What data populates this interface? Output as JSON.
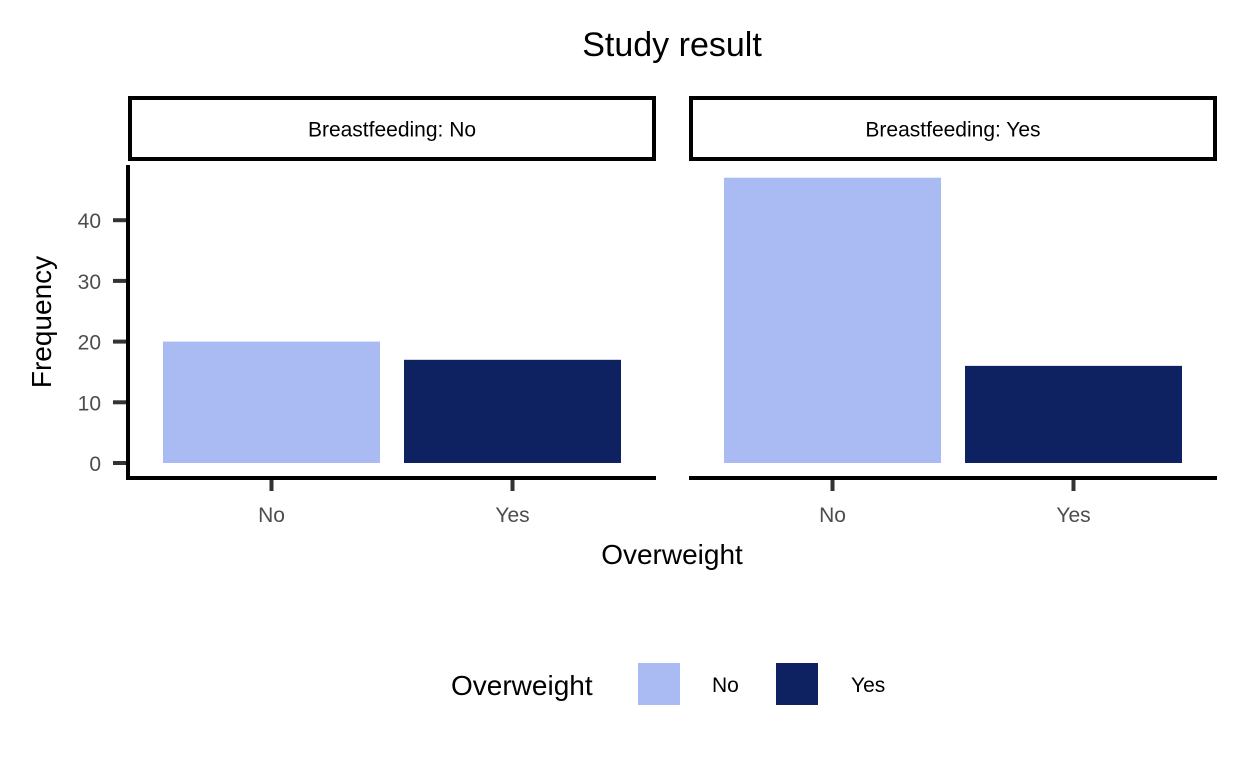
{
  "chart_data": {
    "type": "bar",
    "title": "Study result",
    "xlabel": "Overweight",
    "ylabel": "Frequency",
    "ylim": [
      0,
      48
    ],
    "yticks": [
      0,
      10,
      20,
      30,
      40
    ],
    "categories": [
      "No",
      "Yes"
    ],
    "panels": [
      {
        "strip": "Breastfeeding: No",
        "values": [
          20,
          17
        ]
      },
      {
        "strip": "Breastfeeding: Yes",
        "values": [
          47,
          16
        ]
      }
    ],
    "legend": {
      "title": "Overweight",
      "position": "bottom",
      "entries": [
        {
          "label": "No",
          "color": "#aabbf4"
        },
        {
          "label": "Yes",
          "color": "#0e2160"
        }
      ]
    },
    "grid": false
  }
}
